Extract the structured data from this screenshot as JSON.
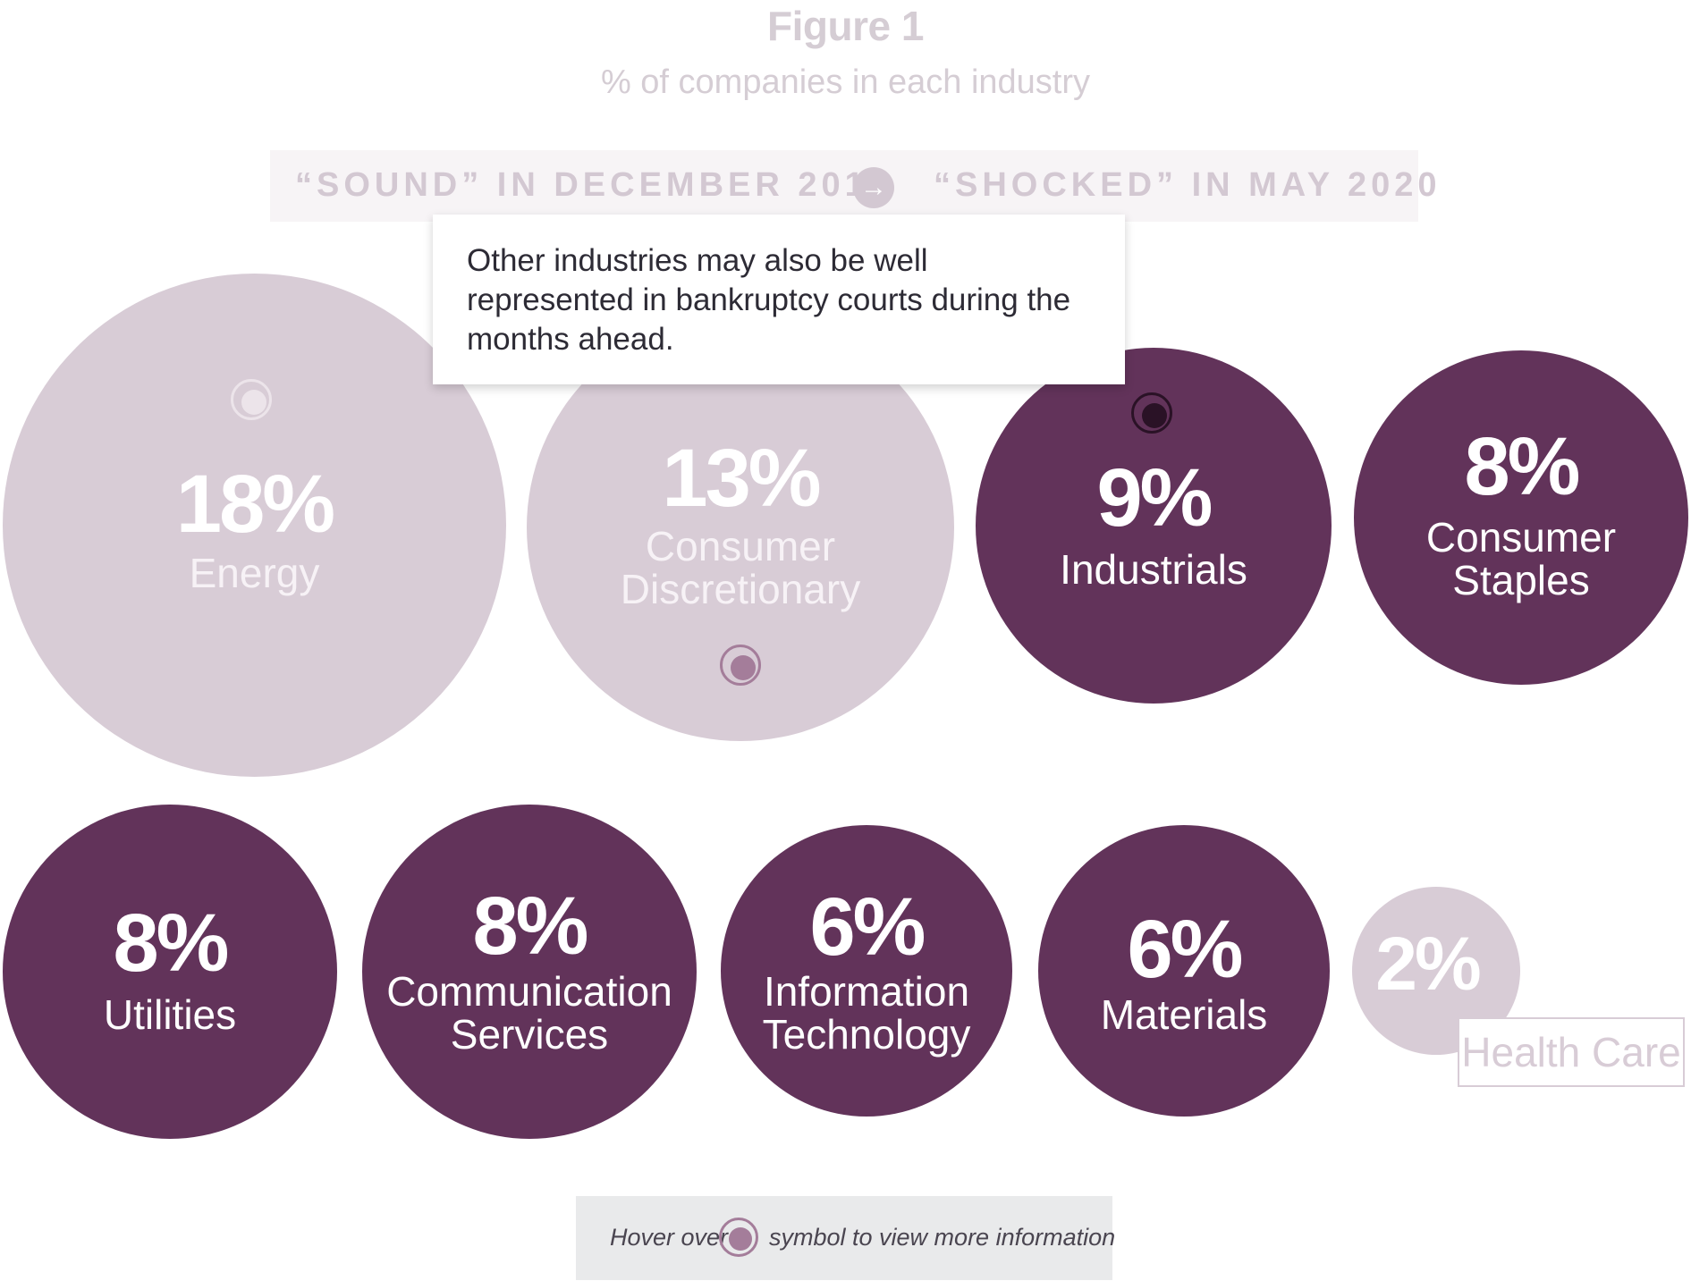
{
  "header": {
    "title": "Figure 1",
    "subtitle": "% of companies in each industry"
  },
  "toggle": {
    "left_label": "“SOUND” IN DECEMBER 2019",
    "arrow": "→",
    "right_label": "“SHOCKED” IN MAY 2020"
  },
  "tooltip": {
    "text": "Other industries may also be well represented in bankruptcy courts during the months ahead."
  },
  "bubbles": [
    {
      "pct": "18%",
      "label": "Energy",
      "state": "inactive"
    },
    {
      "pct": "13%",
      "label": "Consumer Discretionary",
      "state": "inactive"
    },
    {
      "pct": "9%",
      "label": "Industrials",
      "state": "active"
    },
    {
      "pct": "8%",
      "label": "Consumer Staples",
      "state": "active"
    },
    {
      "pct": "8%",
      "label": "Utilities",
      "state": "active"
    },
    {
      "pct": "8%",
      "label": "Communication Services",
      "state": "active"
    },
    {
      "pct": "6%",
      "label": "Information Technology",
      "state": "active"
    },
    {
      "pct": "6%",
      "label": "Materials",
      "state": "active"
    },
    {
      "pct": "2%",
      "label": "Health Care",
      "state": "inactive"
    }
  ],
  "legend": {
    "prefix": "Hover over",
    "suffix": "symbol to view more information",
    "icon": "hotspot-icon"
  },
  "colors": {
    "active": "#62335a",
    "inactive": "#d8ccd6",
    "title": "#d5cdd4"
  }
}
